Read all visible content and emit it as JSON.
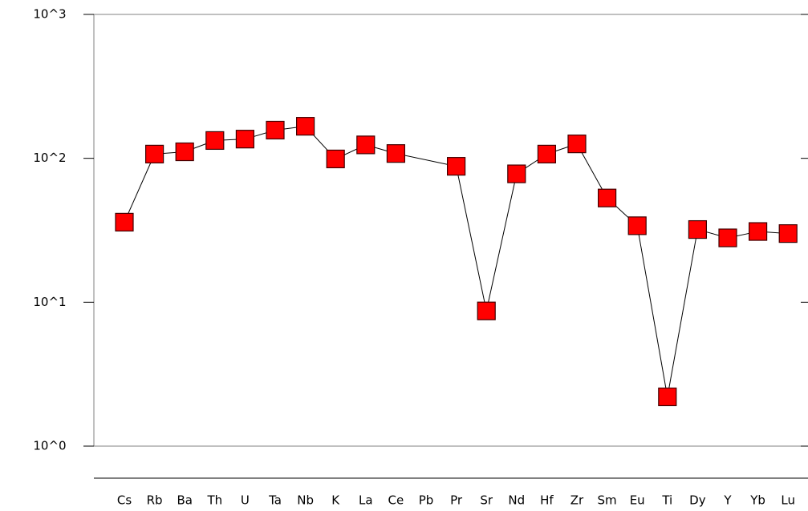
{
  "chart_data": {
    "type": "line",
    "categories": [
      "Cs",
      "Rb",
      "Ba",
      "Th",
      "U",
      "Ta",
      "Nb",
      "K",
      "La",
      "Ce",
      "Pb",
      "Pr",
      "Sr",
      "Nd",
      "Hf",
      "Zr",
      "Sm",
      "Eu",
      "Ti",
      "Dy",
      "Y",
      "Yb",
      "Lu"
    ],
    "series": [
      {
        "color": "#ff0000",
        "values": [
          36,
          107,
          111,
          133,
          136,
          157,
          167,
          99,
          124,
          108,
          null,
          88,
          8.7,
          78,
          107,
          126,
          53,
          34,
          2.2,
          32,
          28,
          31,
          30
        ]
      }
    ],
    "ylim": [
      1,
      1000
    ],
    "yticks": [
      {
        "value": 1,
        "label": "10^0"
      },
      {
        "value": 10,
        "label": "10^1"
      },
      {
        "value": 100,
        "label": "10^2"
      },
      {
        "value": 1000,
        "label": "10^3"
      }
    ],
    "log_scale": true
  }
}
